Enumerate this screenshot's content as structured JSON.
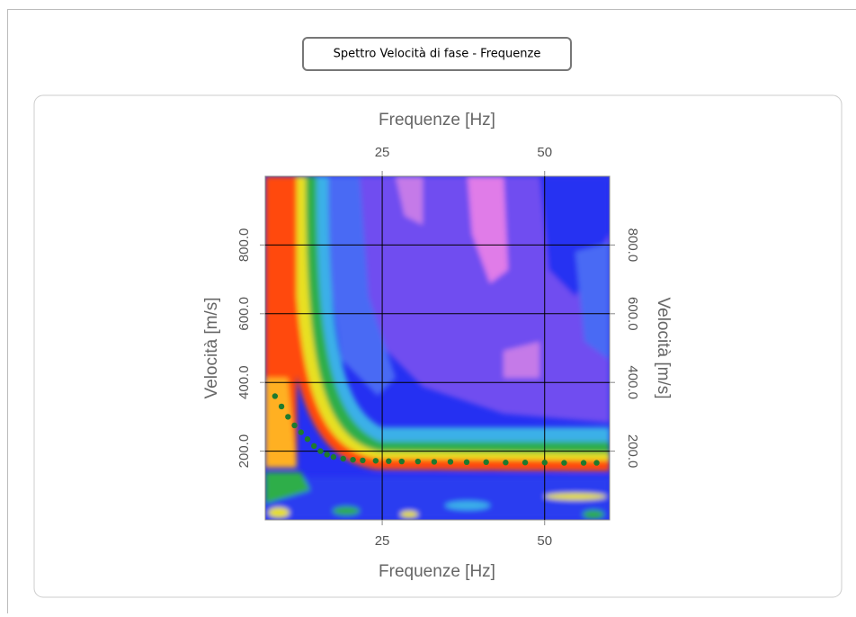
{
  "header": {
    "button": "Spettro Velocità di fase - Frequenze"
  },
  "chart_data": {
    "type": "scatter",
    "xlabel": "Frequenze [Hz]",
    "ylabel": "Velocità [m/s]",
    "xlim": [
      7,
      60
    ],
    "ylim": [
      0,
      1000
    ],
    "xticks": [
      25,
      50
    ],
    "yticks": [
      {
        "value": 200,
        "label": "200.0"
      },
      {
        "value": 400,
        "label": "400.0"
      },
      {
        "value": 600,
        "label": "600.0"
      },
      {
        "value": 800,
        "label": "800.0"
      }
    ],
    "grid": true,
    "series": [
      {
        "color": "#1e7a2e",
        "x": [
          8.5,
          9.5,
          10.5,
          11.5,
          12.5,
          13.5,
          14.5,
          15.5,
          16.5,
          17.5,
          19,
          20.5,
          22,
          24,
          26,
          28,
          30.5,
          33,
          35.5,
          38,
          41,
          44,
          47,
          50,
          53,
          56,
          58
        ],
        "values": [
          360,
          330,
          300,
          275,
          255,
          235,
          215,
          200,
          190,
          183,
          178,
          175,
          173,
          172,
          171,
          170,
          170,
          169,
          169,
          168,
          168,
          167,
          167,
          167,
          166,
          166,
          166
        ]
      }
    ]
  }
}
